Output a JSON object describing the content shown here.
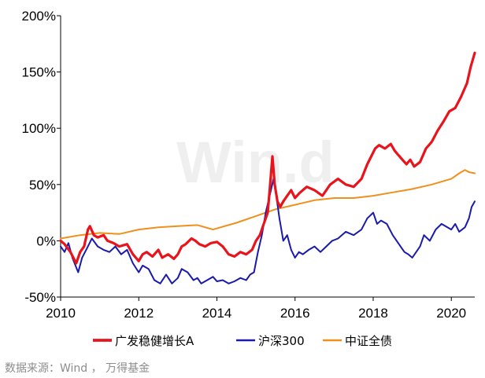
{
  "watermark": "Win.d",
  "source": "数据来源：Wind ， 万得基金",
  "chart_data": {
    "type": "line",
    "xlim": [
      2010,
      2020.6
    ],
    "ylim": [
      -50,
      200
    ],
    "x_ticks": [
      2010,
      2012,
      2014,
      2016,
      2018,
      2020
    ],
    "y_ticks": [
      -50,
      0,
      50,
      100,
      150,
      200
    ],
    "y_tick_labels": [
      "-50%",
      "0%",
      "50%",
      "100%",
      "150%",
      "200%"
    ],
    "grid": false,
    "legend_position": "bottom",
    "series": [
      {
        "name": "广发稳健增长A",
        "color": "#e8141b",
        "width": 3.2,
        "x": [
          2010,
          2010.1,
          2010.25,
          2010.4,
          2010.5,
          2010.6,
          2010.7,
          2010.75,
          2010.85,
          2010.95,
          2011.1,
          2011.2,
          2011.35,
          2011.5,
          2011.7,
          2011.85,
          2012.0,
          2012.1,
          2012.2,
          2012.35,
          2012.5,
          2012.6,
          2012.75,
          2012.9,
          2013.0,
          2013.1,
          2013.2,
          2013.35,
          2013.45,
          2013.55,
          2013.7,
          2013.85,
          2014.0,
          2014.15,
          2014.3,
          2014.45,
          2014.6,
          2014.75,
          2014.9,
          2015.0,
          2015.1,
          2015.2,
          2015.3,
          2015.35,
          2015.42,
          2015.48,
          2015.55,
          2015.62,
          2015.7,
          2015.8,
          2015.9,
          2016.0,
          2016.1,
          2016.3,
          2016.5,
          2016.7,
          2016.9,
          2017.1,
          2017.3,
          2017.5,
          2017.7,
          2017.85,
          2017.95,
          2018.05,
          2018.15,
          2018.3,
          2018.45,
          2018.55,
          2018.65,
          2018.75,
          2018.85,
          2018.95,
          2019.05,
          2019.2,
          2019.35,
          2019.5,
          2019.65,
          2019.8,
          2019.95,
          2020.1,
          2020.25,
          2020.4,
          2020.5,
          2020.6
        ],
        "y": [
          0,
          -3,
          -10,
          -20,
          -10,
          -5,
          10,
          13,
          5,
          3,
          5,
          0,
          -2,
          -5,
          -3,
          -12,
          -18,
          -12,
          -10,
          -14,
          -8,
          -15,
          -12,
          -16,
          -12,
          -5,
          -3,
          2,
          0,
          -3,
          -5,
          -2,
          -1,
          -5,
          -12,
          -14,
          -10,
          -12,
          -8,
          0,
          5,
          15,
          25,
          45,
          75,
          50,
          35,
          30,
          35,
          40,
          45,
          38,
          42,
          48,
          45,
          40,
          50,
          55,
          50,
          48,
          55,
          68,
          75,
          82,
          85,
          82,
          86,
          80,
          76,
          72,
          68,
          72,
          66,
          70,
          82,
          88,
          98,
          106,
          115,
          118,
          128,
          140,
          155,
          167
        ]
      },
      {
        "name": "沪深300",
        "color": "#1a1aad",
        "width": 2,
        "x": [
          2010,
          2010.1,
          2010.2,
          2010.3,
          2010.45,
          2010.55,
          2010.7,
          2010.8,
          2010.95,
          2011.1,
          2011.25,
          2011.4,
          2011.55,
          2011.7,
          2011.85,
          2012.0,
          2012.1,
          2012.25,
          2012.4,
          2012.55,
          2012.7,
          2012.85,
          2013.0,
          2013.1,
          2013.25,
          2013.4,
          2013.5,
          2013.6,
          2013.75,
          2013.9,
          2014.0,
          2014.15,
          2014.3,
          2014.45,
          2014.6,
          2014.75,
          2014.85,
          2014.95,
          2015.05,
          2015.15,
          2015.25,
          2015.35,
          2015.45,
          2015.52,
          2015.6,
          2015.7,
          2015.8,
          2015.9,
          2016.0,
          2016.1,
          2016.2,
          2016.35,
          2016.5,
          2016.65,
          2016.8,
          2016.95,
          2017.1,
          2017.3,
          2017.5,
          2017.7,
          2017.85,
          2018.0,
          2018.1,
          2018.2,
          2018.35,
          2018.5,
          2018.6,
          2018.7,
          2018.8,
          2018.9,
          2019.0,
          2019.1,
          2019.2,
          2019.3,
          2019.45,
          2019.6,
          2019.75,
          2019.9,
          2020.0,
          2020.1,
          2020.2,
          2020.35,
          2020.45,
          2020.52,
          2020.6
        ],
        "y": [
          -5,
          -10,
          -2,
          -15,
          -28,
          -15,
          -5,
          2,
          -5,
          -8,
          -10,
          -5,
          -12,
          -8,
          -20,
          -28,
          -22,
          -25,
          -35,
          -38,
          -30,
          -38,
          -33,
          -25,
          -28,
          -35,
          -33,
          -38,
          -35,
          -32,
          -36,
          -35,
          -38,
          -36,
          -33,
          -35,
          -30,
          -28,
          -10,
          5,
          25,
          40,
          55,
          40,
          20,
          0,
          5,
          -8,
          -15,
          -10,
          -12,
          -8,
          -5,
          -10,
          -5,
          0,
          2,
          8,
          5,
          10,
          20,
          25,
          15,
          18,
          15,
          5,
          0,
          -5,
          -10,
          -12,
          -15,
          -10,
          -5,
          5,
          0,
          10,
          15,
          12,
          10,
          15,
          8,
          12,
          20,
          30,
          35
        ]
      },
      {
        "name": "中证全债",
        "color": "#f0901c",
        "width": 2,
        "x": [
          2010,
          2010.5,
          2011.0,
          2011.5,
          2012.0,
          2012.5,
          2013.0,
          2013.5,
          2013.9,
          2014.5,
          2015.0,
          2015.5,
          2016.0,
          2016.5,
          2017.0,
          2017.5,
          2018.0,
          2018.5,
          2019.0,
          2019.5,
          2020.0,
          2020.2,
          2020.35,
          2020.45,
          2020.6
        ],
        "y": [
          2,
          5,
          7,
          6,
          10,
          12,
          13,
          14,
          10,
          16,
          22,
          28,
          32,
          36,
          38,
          38,
          40,
          43,
          46,
          50,
          55,
          60,
          63,
          61,
          60
        ]
      }
    ]
  }
}
